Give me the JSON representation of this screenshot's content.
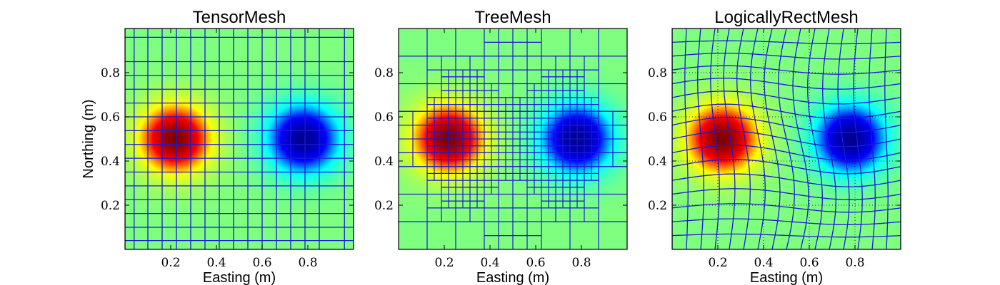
{
  "colors": {
    "mesh_line": "#1a1ad6",
    "background": "#ffffff",
    "colormap": [
      "#00008f",
      "#0000ff",
      "#00ffff",
      "#7fff7f",
      "#ffff00",
      "#ff0000",
      "#800000"
    ]
  },
  "chart_data": [
    {
      "type": "heatmap",
      "title": "TensorMesh",
      "xlabel": "Easting (m)",
      "ylabel": "Northing (m)",
      "xlim": [
        0,
        1
      ],
      "ylim": [
        0,
        1
      ],
      "xticks": [
        0.2,
        0.4,
        0.6,
        0.8
      ],
      "yticks": [
        0.2,
        0.4,
        0.6,
        0.8
      ],
      "mesh": "tensor",
      "sources": [
        {
          "x": 0.22,
          "y": 0.5,
          "sign": "positive"
        },
        {
          "x": 0.78,
          "y": 0.5,
          "sign": "negative"
        }
      ]
    },
    {
      "type": "heatmap",
      "title": "TreeMesh",
      "xlabel": "Easting (m)",
      "ylabel": "",
      "xlim": [
        0,
        1
      ],
      "ylim": [
        0,
        1
      ],
      "xticks": [
        0.2,
        0.4,
        0.6,
        0.8
      ],
      "yticks": [
        0.2,
        0.4,
        0.6,
        0.8
      ],
      "mesh": "tree",
      "sources": [
        {
          "x": 0.22,
          "y": 0.5,
          "sign": "positive"
        },
        {
          "x": 0.78,
          "y": 0.5,
          "sign": "negative"
        }
      ]
    },
    {
      "type": "heatmap",
      "title": "LogicallyRectMesh",
      "xlabel": "Easting (m)",
      "ylabel": "",
      "xlim": [
        0,
        1
      ],
      "ylim": [
        0,
        1
      ],
      "xticks": [
        0.2,
        0.4,
        0.6,
        0.8
      ],
      "yticks": [
        0.2,
        0.4,
        0.6,
        0.8
      ],
      "mesh": "curvilinear",
      "sources": [
        {
          "x": 0.22,
          "y": 0.5,
          "sign": "positive"
        },
        {
          "x": 0.78,
          "y": 0.5,
          "sign": "negative"
        }
      ]
    }
  ]
}
